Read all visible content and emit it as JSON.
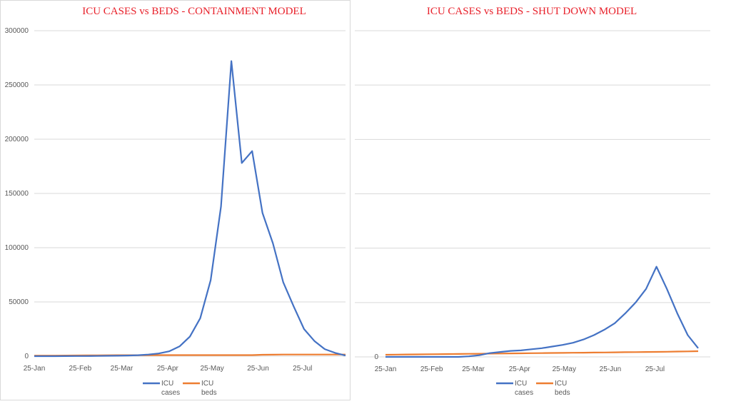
{
  "colors": {
    "cases": "#4472c4",
    "beds": "#ed7d31",
    "title": "#e8202a"
  },
  "chart_data": [
    {
      "type": "line",
      "title": "ICU CASES vs BEDS - CONTAINMENT MODEL",
      "xlabel": "",
      "ylabel": "",
      "x_start": "25-Jan",
      "x_step_days": 7,
      "x_ticks": [
        "25-Jan",
        "25-Feb",
        "25-Mar",
        "25-Apr",
        "25-May",
        "25-Jun",
        "25-Jul"
      ],
      "x_tick_days": [
        0,
        31,
        59,
        90,
        120,
        151,
        181
      ],
      "y_ticks": [
        "300000",
        "250000",
        "200000",
        "150000",
        "100000",
        "50000",
        "0"
      ],
      "ylim": [
        0,
        300000
      ],
      "grid": true,
      "legend_position": "bottom",
      "series": [
        {
          "name": "ICU cases",
          "color": "#4472c4",
          "values": [
            0,
            0,
            0,
            50,
            100,
            150,
            200,
            300,
            400,
            600,
            900,
            1500,
            2500,
            4500,
            9000,
            18000,
            35000,
            70000,
            138000,
            272000,
            178000,
            189000,
            132000,
            104000,
            68000,
            46000,
            25000,
            14000,
            6500,
            3000,
            600
          ]
        },
        {
          "name": "ICU beds",
          "color": "#ed7d31",
          "values": [
            500,
            500,
            550,
            600,
            650,
            700,
            800,
            850,
            900,
            900,
            950,
            950,
            1000,
            1000,
            1000,
            1000,
            1000,
            1000,
            1000,
            1000,
            1000,
            1000,
            1300,
            1400,
            1500,
            1500,
            1500,
            1500,
            1500,
            1500,
            1500
          ]
        }
      ]
    },
    {
      "type": "line",
      "title": "ICU CASES vs BEDS - SHUT DOWN MODEL",
      "xlabel": "",
      "ylabel": "",
      "x_start": "25-Jan",
      "x_step_days": 7,
      "x_ticks": [
        "25-Jan",
        "25-Feb",
        "25-Mar",
        "25-Apr",
        "25-May",
        "25-Jun",
        "25-Jul"
      ],
      "x_tick_days": [
        0,
        31,
        59,
        90,
        120,
        151,
        181
      ],
      "y_ticks": [
        "0"
      ],
      "ylim": [
        0,
        60000
      ],
      "grid": true,
      "legend_position": "bottom",
      "series": [
        {
          "name": "ICU cases",
          "color": "#4472c4",
          "values": [
            0,
            0,
            0,
            0,
            0,
            0,
            0,
            0,
            100,
            300,
            700,
            900,
            1100,
            1200,
            1400,
            1600,
            1900,
            2200,
            2600,
            3200,
            4000,
            5000,
            6200,
            8000,
            10000,
            12500,
            16600,
            12500,
            8000,
            4000,
            1600
          ]
        },
        {
          "name": "ICU beds",
          "color": "#ed7d31",
          "values": [
            400,
            420,
            440,
            460,
            480,
            500,
            520,
            540,
            560,
            580,
            600,
            620,
            640,
            660,
            680,
            700,
            720,
            740,
            760,
            780,
            800,
            820,
            840,
            860,
            880,
            900,
            920,
            950,
            980,
            1010,
            1050
          ]
        }
      ]
    }
  ],
  "legend": {
    "cases_line1": "ICU",
    "cases_line2": "cases",
    "beds_line1": "ICU",
    "beds_line2": "beds"
  }
}
